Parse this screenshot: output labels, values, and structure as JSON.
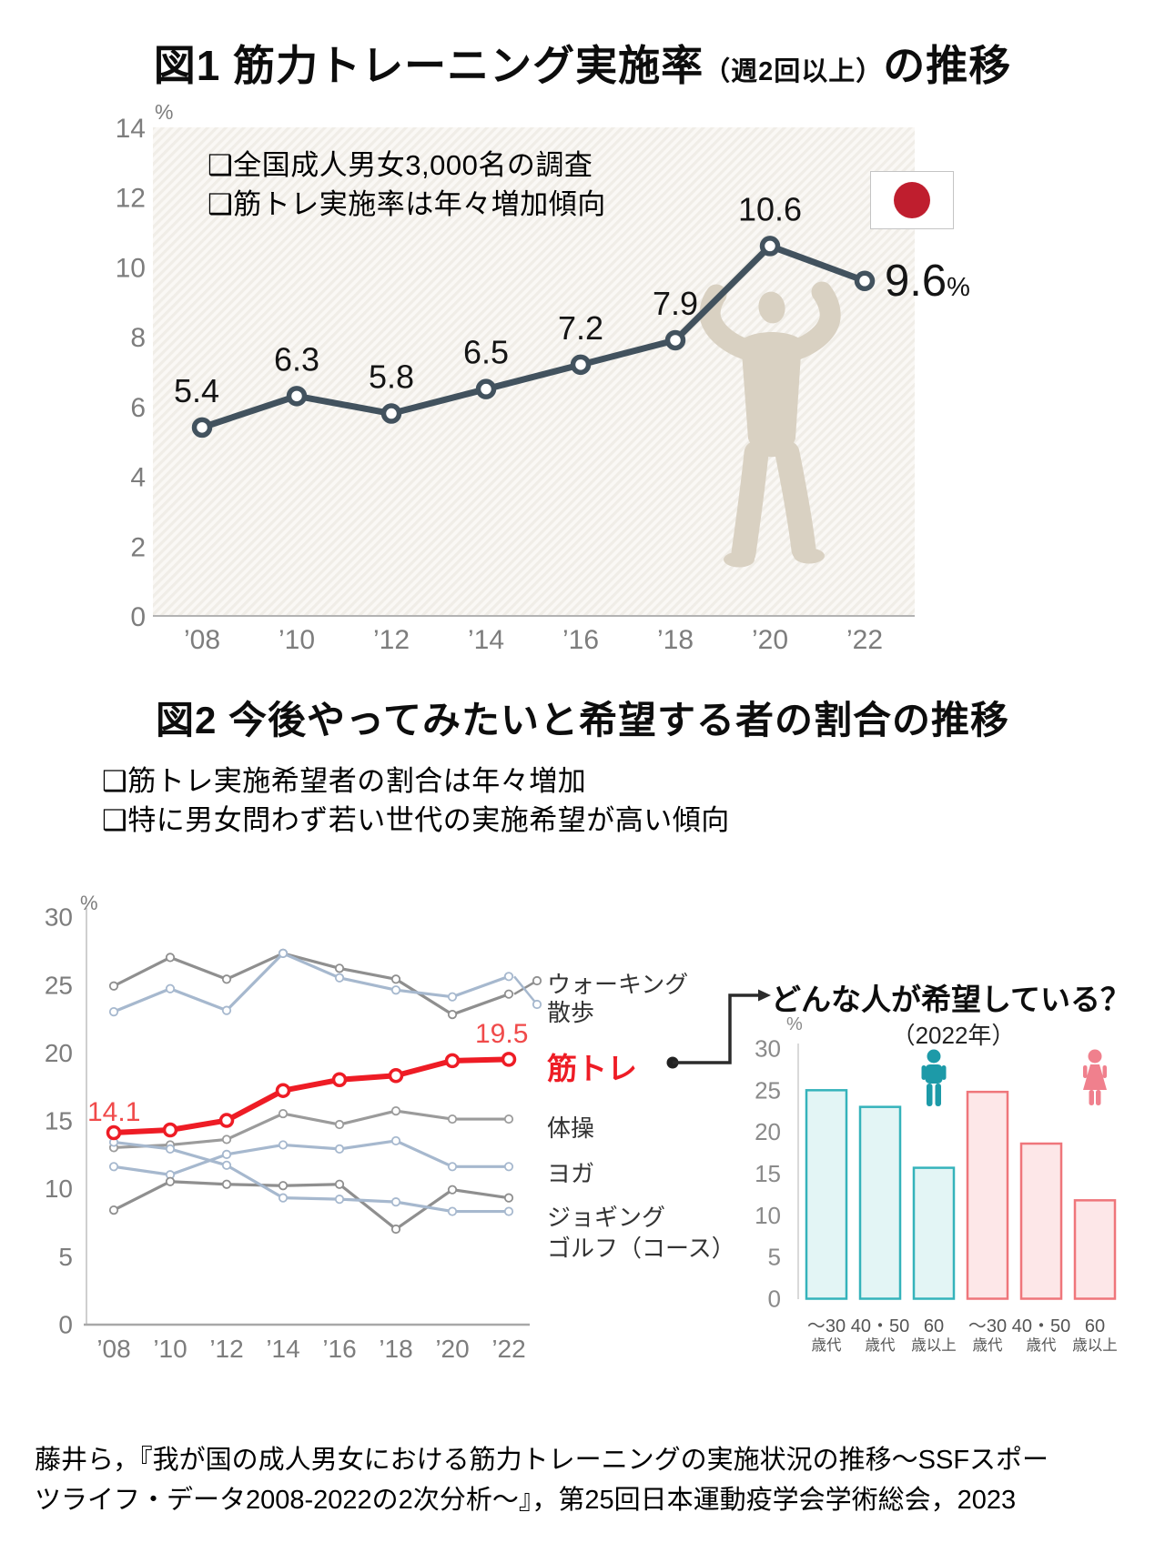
{
  "fig1": {
    "title_main": "図1 筋力トレーニング実施率",
    "title_paren": "（週2回以上）",
    "title_tail": "の推移",
    "notes": [
      "❑全国成人男女3,000名の調査",
      "❑筋トレ実施率は年々増加傾向"
    ],
    "flag_icon": "japan-flag-icon",
    "flag_red": "#bf1e2e"
  },
  "fig2": {
    "title": "図2 今後やってみたいと希望する者の割合の推移",
    "notes": [
      "❑筋トレ実施希望者の割合は年々増加",
      "❑特に男女問わず若い世代の実施希望が高い傾向"
    ]
  },
  "citation": "藤井ら，『我が国の成人男女における筋力トレーニングの実施状況の推移～SSFスポーツライフ・データ2008-2022の2次分析～』，第25回日本運動疫学会学術総会，2023",
  "chart_data": [
    {
      "type": "line",
      "title": "筋力トレーニング実施率（週2回以上）の推移",
      "categories": [
        "’08",
        "’10",
        "’12",
        "’14",
        "’16",
        "’18",
        "’20",
        "’22"
      ],
      "values": [
        5.4,
        6.3,
        5.8,
        6.5,
        7.2,
        7.9,
        10.6,
        9.6
      ],
      "ylabel": "%",
      "ylim": [
        0,
        14
      ],
      "yticks": [
        0,
        2,
        4,
        6,
        8,
        10,
        12,
        14
      ],
      "line_color": "#42525e",
      "marker": "open-circle",
      "last_label_unit": "%",
      "background": "hatched",
      "silhouette_icon": "bodybuilder-silhouette",
      "silhouette_color": "#d9d1c2"
    },
    {
      "type": "line",
      "categories": [
        "’08",
        "’10",
        "’12",
        "’14",
        "’16",
        "’18",
        "’20",
        "’22"
      ],
      "ylabel": "%",
      "ylim": [
        0,
        30
      ],
      "yticks": [
        0,
        5,
        10,
        15,
        20,
        25,
        30
      ],
      "series": [
        {
          "name": "ウォーキング",
          "color": "#8f8f8f",
          "values": [
            24.9,
            27.0,
            25.4,
            27.3,
            26.2,
            25.4,
            22.8,
            24.3
          ]
        },
        {
          "name": "散歩",
          "color": "#a6b8ce",
          "values": [
            23.0,
            24.7,
            23.1,
            27.3,
            25.5,
            24.6,
            24.1,
            25.6
          ]
        },
        {
          "name": "筋トレ",
          "color": "#ee1c25",
          "emphasis": true,
          "values": [
            14.1,
            14.3,
            15.0,
            17.2,
            18.0,
            18.3,
            19.4,
            19.5
          ]
        },
        {
          "name": "体操",
          "color": "#9b9b9b",
          "values": [
            13.0,
            13.2,
            13.6,
            15.5,
            14.7,
            15.7,
            15.1,
            15.1
          ]
        },
        {
          "name": "ヨガ",
          "color": "#a6b8ce",
          "values": [
            11.6,
            11.0,
            12.5,
            13.2,
            12.9,
            13.5,
            11.6,
            11.6
          ]
        },
        {
          "name": "ジョギング",
          "color": "#8f8f8f",
          "values": [
            8.4,
            10.5,
            10.3,
            10.2,
            10.3,
            7.0,
            9.9,
            9.3
          ]
        },
        {
          "name": "ゴルフ（コース）",
          "color": "#a6b8ce",
          "values": [
            13.4,
            12.9,
            11.7,
            9.3,
            9.2,
            9.0,
            8.3,
            8.3
          ]
        }
      ]
    },
    {
      "type": "bar",
      "title": "どんな人が希望している？",
      "subtitle": "（2022年）",
      "ylabel": "%",
      "ylim": [
        0,
        30
      ],
      "yticks": [
        0,
        5,
        10,
        15,
        20,
        25,
        30
      ],
      "groups": [
        {
          "icon": "male-icon",
          "icon_color": "#1d9aa8",
          "fill": "#e3f5f5",
          "stroke": "#35b3bb",
          "categories": [
            [
              "～30",
              "歳代"
            ],
            [
              "40・50",
              "歳代"
            ],
            [
              "60",
              "歳以上"
            ]
          ],
          "values": [
            25.0,
            23.0,
            15.7
          ]
        },
        {
          "icon": "female-icon",
          "icon_color": "#f0808d",
          "fill": "#fde7e8",
          "stroke": "#ef767b",
          "categories": [
            [
              "～30",
              "歳代"
            ],
            [
              "40・50",
              "歳代"
            ],
            [
              "60",
              "歳以上"
            ]
          ],
          "values": [
            24.8,
            18.6,
            11.8
          ]
        }
      ]
    }
  ]
}
